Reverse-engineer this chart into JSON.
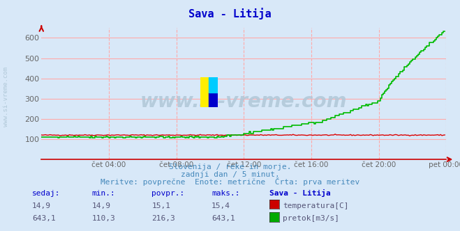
{
  "title": "Sava - Litija",
  "bg_color": "#d8e8f8",
  "x_labels": [
    "čet 04:00",
    "čet 08:00",
    "čet 12:00",
    "čet 16:00",
    "čet 20:00",
    "pet 00:00"
  ],
  "x_ticks": [
    48,
    96,
    144,
    192,
    240,
    288
  ],
  "n_points": 288,
  "ylim": [
    0,
    650
  ],
  "yticks": [
    100,
    200,
    300,
    400,
    500,
    600
  ],
  "temp_color": "#dd0000",
  "flow_color": "#00bb00",
  "watermark": "www.si-vreme.com",
  "watermark_color": "#b0c8d8",
  "subtitle1": "Slovenija / reke in morje.",
  "subtitle2": "zadnji dan / 5 minut.",
  "subtitle3": "Meritve: povprečne  Enote: metrične  Črta: prva meritev",
  "subtitle_color": "#4488bb",
  "table_headers": [
    "sedaj:",
    "min.:",
    "povpr.:",
    "maks.:",
    "Sava - Litija"
  ],
  "table_row1": [
    "14,9",
    "14,9",
    "15,1",
    "15,4"
  ],
  "table_row2": [
    "643,1",
    "110,3",
    "216,3",
    "643,1"
  ],
  "table_label1": "temperatura[C]",
  "table_label2": "pretok[m3/s]",
  "swatch_color1": "#cc0000",
  "swatch_color2": "#00aa00",
  "grid_color": "#ffaaaa",
  "grid_vcolor": "#ffaaaa",
  "axis_color": "#cc0000",
  "tick_color": "#666666",
  "left_watermark": "www.si-vreme.com"
}
